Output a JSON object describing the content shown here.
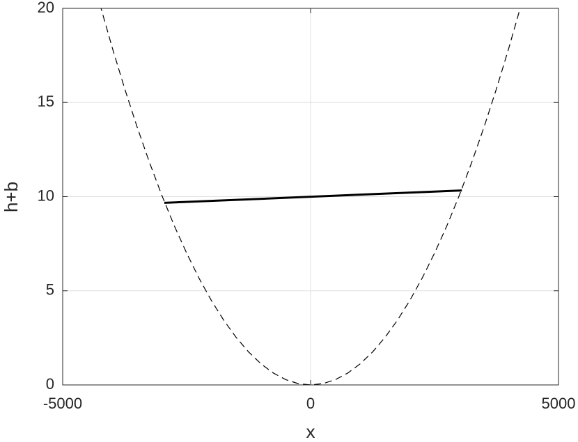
{
  "chart_data": {
    "type": "line",
    "xlabel": "x",
    "ylabel": "h+b",
    "xlim": [
      -5000,
      5000
    ],
    "xticks": [
      -5000,
      0,
      5000
    ],
    "ylim": [
      0,
      20
    ],
    "yticks": [
      0,
      5,
      10,
      15,
      20
    ],
    "grid": true,
    "series": [
      {
        "color": "#000000",
        "dash": true,
        "x": [
          -4250,
          -4000,
          -3750,
          -3500,
          -3250,
          -3000,
          -2750,
          -2500,
          -2250,
          -2000,
          -1750,
          -1500,
          -1250,
          -1000,
          -750,
          -500,
          -250,
          0,
          250,
          500,
          750,
          1000,
          1250,
          1500,
          1750,
          2000,
          2250,
          2500,
          2750,
          3000,
          3250,
          3500,
          3750,
          4000,
          4250
        ],
        "values": [
          20.22,
          17.91,
          15.74,
          13.71,
          11.82,
          10.07,
          8.46,
          7.0,
          5.67,
          4.48,
          3.43,
          2.52,
          1.75,
          1.12,
          0.63,
          0.28,
          0.07,
          0,
          0.07,
          0.28,
          0.63,
          1.12,
          1.75,
          2.52,
          3.43,
          4.48,
          5.67,
          7.0,
          8.46,
          10.07,
          11.82,
          13.71,
          15.74,
          17.91,
          20.22
        ]
      },
      {
        "color": "#000000",
        "dash": false,
        "x": [
          -2950,
          3050
        ],
        "values": [
          9.67,
          10.33
        ]
      }
    ]
  }
}
